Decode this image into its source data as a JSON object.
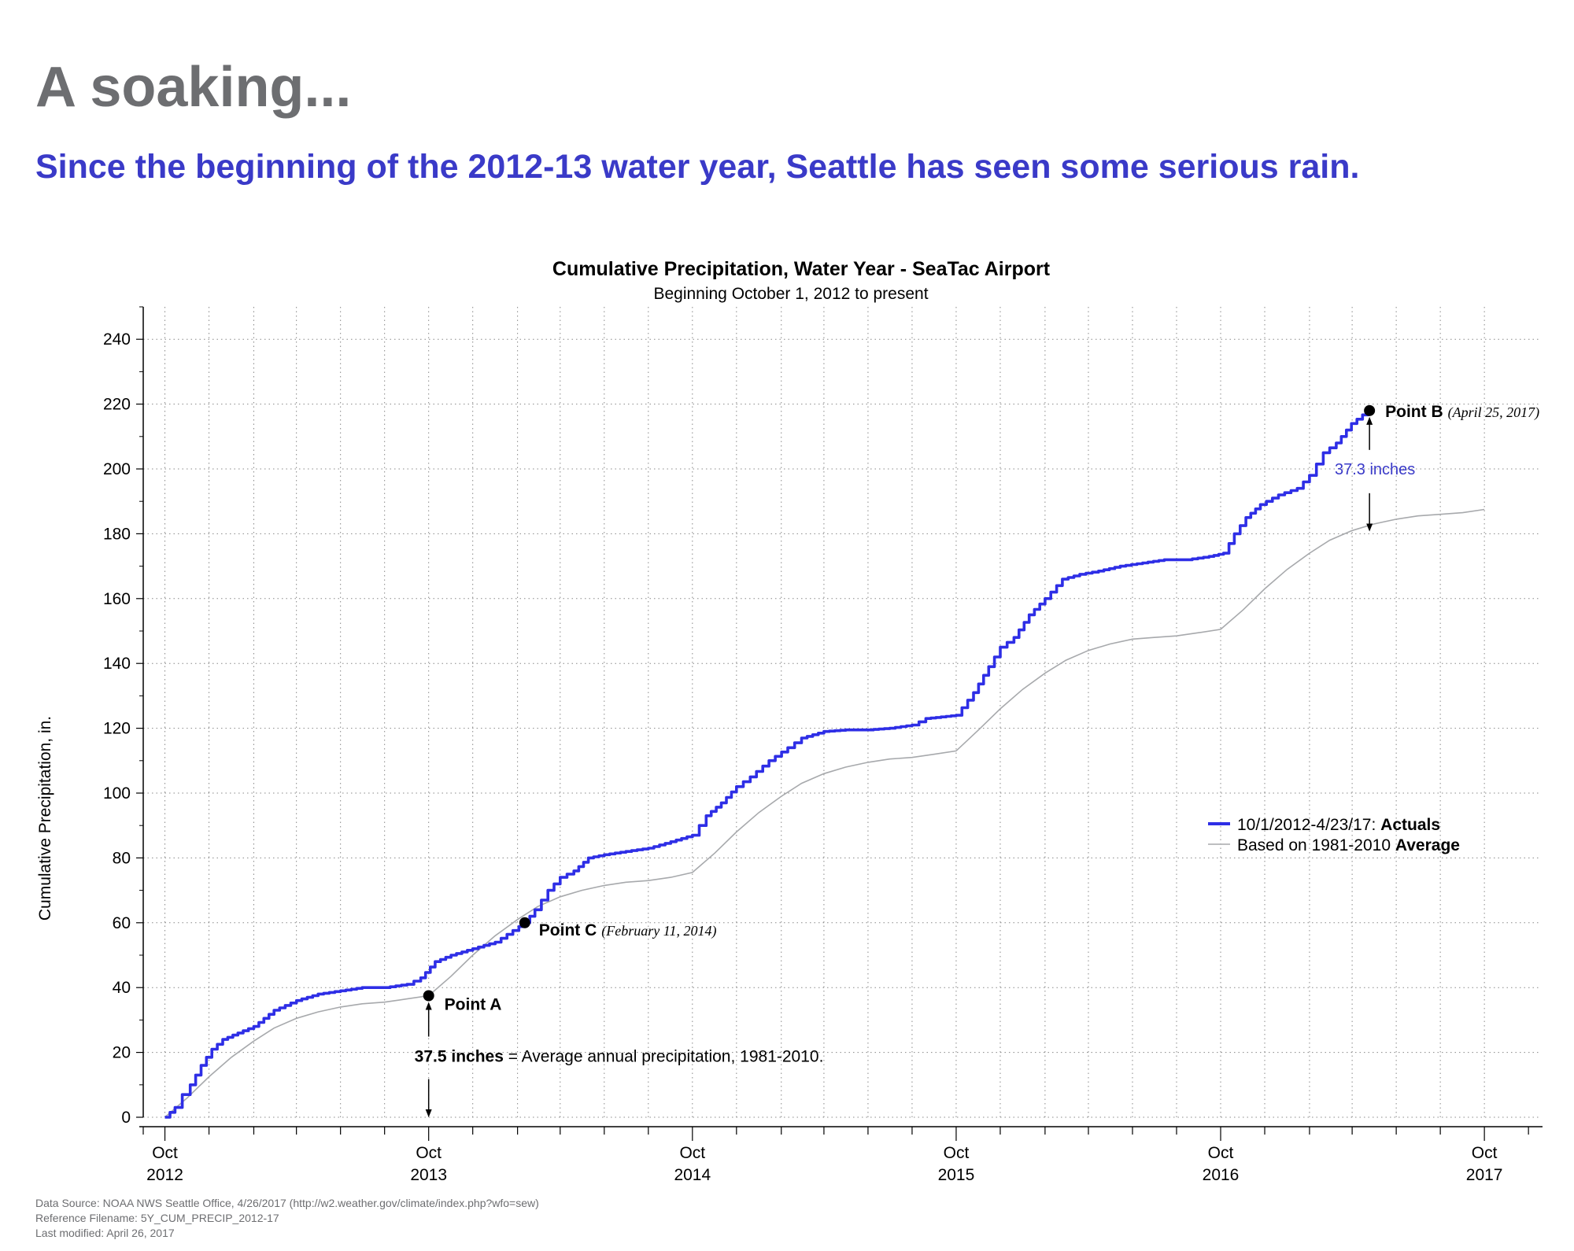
{
  "header": {
    "headline": "A soaking...",
    "subhead": "Since the beginning of the 2012-13 water year, Seattle has seen some serious rain."
  },
  "colors": {
    "headline": "#6d6e71",
    "subhead": "#3a3ac8",
    "actuals": "#2e2ee6",
    "average": "#a7a9ac",
    "annotation_blue": "#3a3ac8"
  },
  "chart_data": {
    "type": "line",
    "title": "Cumulative Precipitation, Water Year - SeaTac Airport",
    "subtitle": "Beginning October 1, 2012 to present",
    "ylabel": "Cumulative Precipitation, in.",
    "xlabel": "",
    "ylim": [
      0,
      250
    ],
    "xlim": [
      "2012-09-01",
      "2017-12-15"
    ],
    "yticks": [
      0,
      20,
      40,
      60,
      80,
      100,
      120,
      140,
      160,
      180,
      200,
      220,
      240
    ],
    "xticks": [
      {
        "date": "2012-10-01",
        "month": "Oct",
        "year": "2012"
      },
      {
        "date": "2013-10-01",
        "month": "Oct",
        "year": "2013"
      },
      {
        "date": "2014-10-01",
        "month": "Oct",
        "year": "2014"
      },
      {
        "date": "2015-10-01",
        "month": "Oct",
        "year": "2015"
      },
      {
        "date": "2016-10-01",
        "month": "Oct",
        "year": "2016"
      },
      {
        "date": "2017-10-01",
        "month": "Oct",
        "year": "2017"
      }
    ],
    "grid": true,
    "legend": {
      "position": "right",
      "entries": [
        {
          "series": "actuals",
          "label": "10/1/2012-4/23/17: ",
          "bold": "Actuals"
        },
        {
          "series": "average",
          "label": "Based on 1981-2010 ",
          "bold": "Average"
        }
      ]
    },
    "series": [
      {
        "key": "actuals",
        "x": [
          "2012-10-01",
          "2012-10-15",
          "2012-10-25",
          "2012-11-05",
          "2012-11-20",
          "2012-12-05",
          "2012-12-20",
          "2013-01-10",
          "2013-02-01",
          "2013-03-01",
          "2013-04-01",
          "2013-05-01",
          "2013-06-01",
          "2013-07-01",
          "2013-08-01",
          "2013-09-01",
          "2013-09-20",
          "2013-10-10",
          "2013-11-01",
          "2013-12-01",
          "2014-01-01",
          "2014-02-11",
          "2014-02-25",
          "2014-03-15",
          "2014-04-01",
          "2014-04-20",
          "2014-05-10",
          "2014-06-01",
          "2014-07-01",
          "2014-08-01",
          "2014-09-01",
          "2014-10-01",
          "2014-10-20",
          "2014-11-10",
          "2014-12-01",
          "2014-12-20",
          "2015-01-15",
          "2015-02-10",
          "2015-03-01",
          "2015-04-01",
          "2015-05-01",
          "2015-06-01",
          "2015-07-01",
          "2015-08-01",
          "2015-08-20",
          "2015-09-10",
          "2015-10-01",
          "2015-10-25",
          "2015-11-15",
          "2015-12-01",
          "2015-12-20",
          "2016-01-10",
          "2016-02-01",
          "2016-02-25",
          "2016-03-20",
          "2016-04-15",
          "2016-05-15",
          "2016-06-15",
          "2016-07-15",
          "2016-08-15",
          "2016-09-15",
          "2016-10-05",
          "2016-10-20",
          "2016-11-05",
          "2016-11-25",
          "2016-12-20",
          "2017-01-15",
          "2017-02-01",
          "2017-02-20",
          "2017-03-10",
          "2017-03-31",
          "2017-04-23"
        ],
        "y": [
          0,
          3,
          7,
          10,
          16,
          21,
          24,
          26,
          28,
          33,
          36,
          38,
          39,
          40,
          40,
          41,
          43,
          48,
          50,
          52,
          54,
          60,
          64,
          70,
          74,
          76,
          80,
          81,
          82,
          83,
          85,
          87,
          93,
          97,
          102,
          105,
          110,
          114,
          117,
          119,
          119.5,
          119.5,
          120,
          121,
          123,
          123.5,
          124,
          131,
          139,
          145,
          148,
          155,
          160,
          166,
          167.5,
          168.5,
          170,
          171,
          172,
          172,
          173,
          174,
          180,
          185,
          189,
          192,
          194,
          198,
          205,
          208,
          214,
          218
        ]
      },
      {
        "key": "average",
        "x": [
          "2012-10-01",
          "2012-11-01",
          "2012-12-01",
          "2013-01-01",
          "2013-02-01",
          "2013-03-01",
          "2013-04-01",
          "2013-05-01",
          "2013-06-01",
          "2013-07-01",
          "2013-08-01",
          "2013-09-01",
          "2013-10-01",
          "2013-11-01",
          "2013-12-01",
          "2014-01-01",
          "2014-02-01",
          "2014-03-01",
          "2014-04-01",
          "2014-05-01",
          "2014-06-01",
          "2014-07-01",
          "2014-08-01",
          "2014-09-01",
          "2014-10-01",
          "2014-11-01",
          "2014-12-01",
          "2015-01-01",
          "2015-02-01",
          "2015-03-01",
          "2015-04-01",
          "2015-05-01",
          "2015-06-01",
          "2015-07-01",
          "2015-08-01",
          "2015-09-01",
          "2015-10-01",
          "2015-11-01",
          "2015-12-01",
          "2016-01-01",
          "2016-02-01",
          "2016-03-01",
          "2016-04-01",
          "2016-05-01",
          "2016-06-01",
          "2016-07-01",
          "2016-08-01",
          "2016-09-01",
          "2016-10-01",
          "2016-11-01",
          "2016-12-01",
          "2017-01-01",
          "2017-02-01",
          "2017-03-01",
          "2017-04-01",
          "2017-05-01",
          "2017-06-01",
          "2017-07-01",
          "2017-08-01",
          "2017-09-01",
          "2017-10-01"
        ],
        "y": [
          0,
          6,
          12.5,
          18.5,
          23.5,
          27.5,
          30.5,
          32.5,
          34,
          35,
          35.5,
          36.5,
          37.5,
          43.5,
          50,
          56,
          61,
          65,
          68,
          70,
          71.5,
          72.5,
          73,
          74,
          75.5,
          81.5,
          88,
          94,
          99,
          103,
          106,
          108,
          109.5,
          110.5,
          111,
          112,
          113,
          119.5,
          126,
          132,
          137,
          141,
          144,
          146,
          147.5,
          148,
          148.5,
          149.5,
          150.5,
          156.5,
          163,
          169,
          174,
          178,
          181,
          183,
          184.5,
          185.5,
          186,
          186.5,
          187.5
        ]
      }
    ],
    "points": [
      {
        "key": "A",
        "x": "2013-10-01",
        "y": 37.5,
        "label": "Point A",
        "date_label": ""
      },
      {
        "key": "B",
        "x": "2017-04-25",
        "y": 218,
        "label": "Point B",
        "date_label": "(April 25, 2017)"
      },
      {
        "key": "C",
        "x": "2014-02-11",
        "y": 60,
        "label": "Point C",
        "date_label": "(February 11, 2014)"
      }
    ],
    "annotations": {
      "gap_label": "37.3 inches",
      "avg_bold": "37.5 inches",
      "avg_text": " = Average annual precipitation, 1981-2010."
    }
  },
  "footer": {
    "line1": "Data Source: NOAA NWS Seattle Office, 4/26/2017 (http://w2.weather.gov/climate/index.php?wfo=sew)",
    "line2": "Reference Filename: 5Y_CUM_PRECIP_2012-17",
    "line3": "Last modified: April 26, 2017"
  }
}
